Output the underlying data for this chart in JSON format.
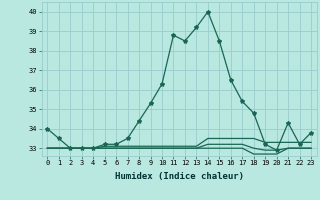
{
  "title": "",
  "xlabel": "Humidex (Indice chaleur)",
  "ylabel": "",
  "xlim": [
    -0.5,
    23.5
  ],
  "ylim": [
    32.6,
    40.5
  ],
  "yticks": [
    33,
    34,
    35,
    36,
    37,
    38,
    39,
    40
  ],
  "xticks": [
    0,
    1,
    2,
    3,
    4,
    5,
    6,
    7,
    8,
    9,
    10,
    11,
    12,
    13,
    14,
    15,
    16,
    17,
    18,
    19,
    20,
    21,
    22,
    23
  ],
  "background_color": "#b8e8e0",
  "grid_color": "#99cccc",
  "line_color": "#1a6655",
  "series": [
    [
      34.0,
      33.5,
      33.0,
      33.0,
      33.0,
      33.2,
      33.2,
      33.5,
      34.4,
      35.3,
      36.3,
      38.8,
      38.5,
      39.2,
      40.0,
      38.5,
      36.5,
      35.4,
      34.8,
      33.2,
      32.9,
      34.3,
      33.2,
      33.8
    ],
    [
      33.0,
      33.0,
      33.0,
      33.0,
      33.0,
      33.1,
      33.1,
      33.1,
      33.1,
      33.1,
      33.1,
      33.1,
      33.1,
      33.1,
      33.5,
      33.5,
      33.5,
      33.5,
      33.5,
      33.3,
      33.3,
      33.3,
      33.3,
      33.3
    ],
    [
      33.0,
      33.0,
      33.0,
      33.0,
      33.0,
      33.0,
      33.0,
      33.0,
      33.0,
      33.0,
      33.0,
      33.0,
      33.0,
      33.0,
      33.2,
      33.2,
      33.2,
      33.2,
      33.0,
      32.9,
      32.9,
      33.0,
      33.0,
      33.0
    ],
    [
      33.0,
      33.0,
      33.0,
      33.0,
      33.0,
      33.0,
      33.0,
      33.0,
      33.0,
      33.0,
      33.0,
      33.0,
      33.0,
      33.0,
      33.0,
      33.0,
      33.0,
      33.0,
      32.7,
      32.7,
      32.7,
      33.0,
      33.0,
      33.0
    ]
  ],
  "marker_series": 0,
  "marker": "*",
  "marker_size": 3,
  "linewidth": 0.9,
  "tick_fontsize": 5.0,
  "xlabel_fontsize": 6.5
}
